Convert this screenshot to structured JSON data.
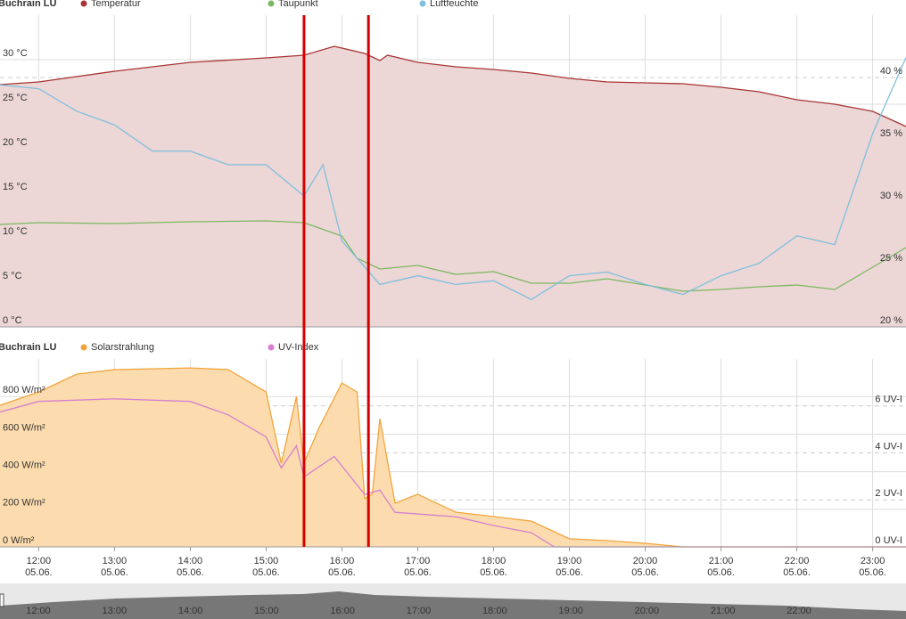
{
  "chart_data": [
    {
      "type": "line",
      "title": "Buchrain LU",
      "xlim": [
        11.49,
        23.44
      ],
      "xticks": [
        12,
        13,
        14,
        15,
        16,
        17,
        18,
        19,
        20,
        21,
        22,
        23
      ],
      "ylim": [
        0,
        35
      ],
      "yticks": [
        {
          "value": 0,
          "label": "0 °C"
        },
        {
          "value": 5,
          "label": "5 °C"
        },
        {
          "value": 10,
          "label": "10 °C"
        },
        {
          "value": 15,
          "label": "15 °C"
        },
        {
          "value": 20,
          "label": "20 °C"
        },
        {
          "value": 25,
          "label": "25 °C"
        },
        {
          "value": 30,
          "label": "30 °C"
        }
      ],
      "y2lim": [
        20,
        45
      ],
      "y2ticks": [
        {
          "value": 20,
          "label": "20 %"
        },
        {
          "value": 25,
          "label": "25 %"
        },
        {
          "value": 30,
          "label": "30 %"
        },
        {
          "value": 35,
          "label": "35 %"
        },
        {
          "value": 40,
          "label": "40 %"
        }
      ],
      "grid": true,
      "series": [
        {
          "name": "Temperatur",
          "color": "#a83434",
          "fill": "#ecd6d6",
          "x": [
            11.49,
            12,
            13,
            14,
            15,
            15.5,
            15.9,
            16.3,
            16.5,
            16.6,
            17,
            17.5,
            18,
            18.5,
            19,
            19.5,
            20,
            20.5,
            21,
            21.5,
            22,
            22.5,
            23,
            23.44
          ],
          "values": [
            27.2,
            27.5,
            28.7,
            29.7,
            30.2,
            30.5,
            31.5,
            30.7,
            29.9,
            30.5,
            29.7,
            29.2,
            28.9,
            28.5,
            27.9,
            27.5,
            27.4,
            27.3,
            26.9,
            26.4,
            25.5,
            25.0,
            24.2,
            22.5
          ]
        },
        {
          "name": "Taupunkt",
          "color": "#7cb860",
          "x": [
            11.49,
            12,
            13,
            14,
            15,
            15.5,
            16,
            16.2,
            16.5,
            17,
            17.5,
            18,
            18.5,
            19,
            19.5,
            20,
            20.5,
            21,
            21.5,
            22,
            22.5,
            23,
            23.44
          ],
          "values": [
            11.5,
            11.7,
            11.6,
            11.8,
            11.9,
            11.7,
            10.2,
            7.7,
            6.5,
            6.9,
            5.9,
            6.2,
            4.9,
            4.9,
            5.4,
            4.7,
            4.0,
            4.2,
            4.5,
            4.7,
            4.2,
            6.7,
            8.9
          ]
        },
        {
          "name": "Luftfeuchte",
          "color": "#7ec0dd",
          "axis": "y2",
          "x": [
            11.49,
            12,
            12.5,
            13,
            13.5,
            14,
            14.5,
            15,
            15.5,
            15.75,
            16,
            16.3,
            16.5,
            17,
            17.5,
            18,
            18.5,
            19,
            19.5,
            20,
            20.5,
            21,
            21.5,
            22,
            22.5,
            23,
            23.44
          ],
          "values": [
            39.4,
            39.1,
            37.3,
            36.2,
            34.1,
            34.1,
            33.0,
            33.0,
            30.5,
            33.0,
            26.9,
            24.8,
            23.4,
            24.1,
            23.4,
            23.7,
            22.2,
            24.1,
            24.4,
            23.4,
            22.6,
            24.1,
            25.1,
            27.3,
            26.6,
            35.5,
            41.6
          ]
        }
      ]
    },
    {
      "type": "line",
      "title": "Buchrain LU",
      "xlim": [
        11.49,
        23.44
      ],
      "xticks": [
        {
          "value": 12,
          "label": "12:00"
        },
        {
          "value": 13,
          "label": "13:00"
        },
        {
          "value": 14,
          "label": "14:00"
        },
        {
          "value": 15,
          "label": "15:00"
        },
        {
          "value": 16,
          "label": "16:00"
        },
        {
          "value": 17,
          "label": "17:00"
        },
        {
          "value": 18,
          "label": "18:00"
        },
        {
          "value": 19,
          "label": "19:00"
        },
        {
          "value": 20,
          "label": "20:00"
        },
        {
          "value": 21,
          "label": "21:00"
        },
        {
          "value": 22,
          "label": "22:00"
        },
        {
          "value": 23,
          "label": "23:00"
        }
      ],
      "xtick_dates": [
        "05.06.",
        "05.06.",
        "05.06.",
        "05.06.",
        "05.06.",
        "05.06.",
        "05.06.",
        "05.06.",
        "05.06.",
        "05.06.",
        "05.06.",
        "05.06."
      ],
      "ylim": [
        0,
        1000
      ],
      "yticks": [
        {
          "value": 0,
          "label": "0 W/m²"
        },
        {
          "value": 200,
          "label": "200 W/m²"
        },
        {
          "value": 400,
          "label": "400 W/m²"
        },
        {
          "value": 600,
          "label": "600 W/m²"
        },
        {
          "value": 800,
          "label": "800 W/m²"
        }
      ],
      "y2lim": [
        0,
        8
      ],
      "y2ticks": [
        {
          "value": 0,
          "label": "0 UV-I"
        },
        {
          "value": 2,
          "label": "2 UV-I"
        },
        {
          "value": 4,
          "label": "4 UV-I"
        },
        {
          "value": 6,
          "label": "6 UV-I"
        }
      ],
      "grid": true,
      "series": [
        {
          "name": "Solarstrahlung",
          "color": "#f2a43c",
          "fill": "#fcdcae",
          "x": [
            11.49,
            12,
            12.5,
            13,
            14,
            14.5,
            15,
            15.2,
            15.4,
            15.5,
            15.7,
            16,
            16.2,
            16.3,
            16.4,
            16.5,
            16.7,
            17,
            17.5,
            18,
            18.5,
            19,
            19.5,
            20,
            20.5,
            23.44
          ],
          "values": [
            753,
            824,
            919,
            943,
            952,
            943,
            824,
            445,
            800,
            445,
            635,
            872,
            824,
            256,
            280,
            682,
            232,
            280,
            185,
            161,
            137,
            43,
            33,
            19,
            0,
            0
          ]
        },
        {
          "name": "UV-Index",
          "color": "#d580d0",
          "axis": "y2",
          "x": [
            11.49,
            12,
            13,
            14,
            14.5,
            15,
            15.2,
            15.4,
            15.5,
            15.9,
            16.3,
            16.5,
            16.7,
            17.5,
            18,
            18.5,
            18.8,
            23.44
          ],
          "values": [
            5.74,
            6.19,
            6.3,
            6.19,
            5.62,
            4.68,
            3.36,
            4.3,
            2.98,
            3.85,
            2.23,
            2.42,
            1.47,
            1.28,
            0.91,
            0.6,
            0,
            0
          ]
        }
      ]
    }
  ],
  "markers": [
    15.5,
    16.35
  ],
  "navigator": {
    "labels": [
      "12:00",
      "13:00",
      "14:00",
      "15:00",
      "16:00",
      "17:00",
      "18:00",
      "19:00",
      "20:00",
      "21:00",
      "22:00"
    ]
  }
}
